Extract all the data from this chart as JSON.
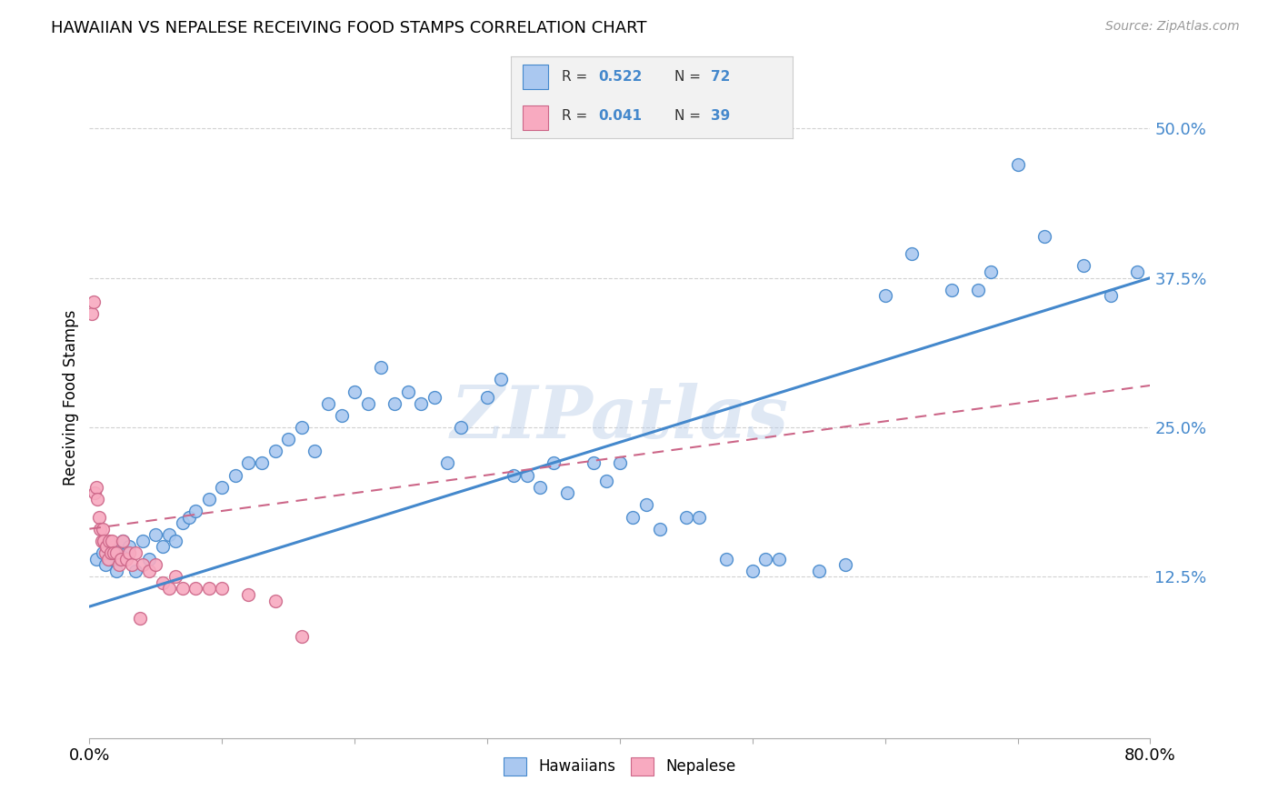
{
  "title": "HAWAIIAN VS NEPALESE RECEIVING FOOD STAMPS CORRELATION CHART",
  "source": "Source: ZipAtlas.com",
  "ylabel": "Receiving Food Stamps",
  "xlim": [
    0.0,
    0.8
  ],
  "ylim": [
    -0.01,
    0.56
  ],
  "yticks": [
    0.125,
    0.25,
    0.375,
    0.5
  ],
  "ytick_labels": [
    "12.5%",
    "25.0%",
    "37.5%",
    "50.0%"
  ],
  "xticks": [
    0.0,
    0.1,
    0.2,
    0.3,
    0.4,
    0.5,
    0.6,
    0.7,
    0.8
  ],
  "xtick_labels": [
    "0.0%",
    "",
    "",
    "",
    "",
    "",
    "",
    "",
    "80.0%"
  ],
  "hawaiian_color": "#aac8f0",
  "nepalese_color": "#f8aac0",
  "line_hawaiian_color": "#4488cc",
  "line_nepalese_color": "#cc6688",
  "watermark": "ZIPatlas",
  "haw_line_x0": 0.0,
  "haw_line_y0": 0.1,
  "haw_line_x1": 0.8,
  "haw_line_y1": 0.375,
  "nep_line_x0": 0.0,
  "nep_line_y0": 0.165,
  "nep_line_x1": 0.8,
  "nep_line_y1": 0.285,
  "hawaiian_x": [
    0.005,
    0.01,
    0.012,
    0.015,
    0.018,
    0.02,
    0.022,
    0.025,
    0.028,
    0.03,
    0.035,
    0.04,
    0.045,
    0.05,
    0.055,
    0.06,
    0.065,
    0.07,
    0.075,
    0.08,
    0.09,
    0.1,
    0.11,
    0.12,
    0.13,
    0.14,
    0.15,
    0.16,
    0.17,
    0.18,
    0.19,
    0.2,
    0.21,
    0.22,
    0.23,
    0.24,
    0.25,
    0.26,
    0.27,
    0.28,
    0.3,
    0.31,
    0.32,
    0.33,
    0.34,
    0.35,
    0.36,
    0.38,
    0.39,
    0.4,
    0.41,
    0.42,
    0.43,
    0.45,
    0.46,
    0.48,
    0.5,
    0.51,
    0.52,
    0.55,
    0.57,
    0.6,
    0.62,
    0.65,
    0.67,
    0.68,
    0.7,
    0.72,
    0.75,
    0.77,
    0.79
  ],
  "hawaiian_y": [
    0.14,
    0.145,
    0.135,
    0.14,
    0.15,
    0.13,
    0.14,
    0.155,
    0.145,
    0.15,
    0.13,
    0.155,
    0.14,
    0.16,
    0.15,
    0.16,
    0.155,
    0.17,
    0.175,
    0.18,
    0.19,
    0.2,
    0.21,
    0.22,
    0.22,
    0.23,
    0.24,
    0.25,
    0.23,
    0.27,
    0.26,
    0.28,
    0.27,
    0.3,
    0.27,
    0.28,
    0.27,
    0.275,
    0.22,
    0.25,
    0.275,
    0.29,
    0.21,
    0.21,
    0.2,
    0.22,
    0.195,
    0.22,
    0.205,
    0.22,
    0.175,
    0.185,
    0.165,
    0.175,
    0.175,
    0.14,
    0.13,
    0.14,
    0.14,
    0.13,
    0.135,
    0.36,
    0.395,
    0.365,
    0.365,
    0.38,
    0.47,
    0.41,
    0.385,
    0.36,
    0.38
  ],
  "nepalese_x": [
    0.002,
    0.003,
    0.004,
    0.005,
    0.006,
    0.007,
    0.008,
    0.009,
    0.01,
    0.011,
    0.012,
    0.013,
    0.014,
    0.015,
    0.016,
    0.017,
    0.018,
    0.02,
    0.022,
    0.024,
    0.025,
    0.028,
    0.03,
    0.032,
    0.035,
    0.038,
    0.04,
    0.045,
    0.05,
    0.055,
    0.06,
    0.065,
    0.07,
    0.08,
    0.09,
    0.1,
    0.12,
    0.14,
    0.16
  ],
  "nepalese_y": [
    0.345,
    0.355,
    0.195,
    0.2,
    0.19,
    0.175,
    0.165,
    0.155,
    0.165,
    0.155,
    0.145,
    0.15,
    0.14,
    0.155,
    0.145,
    0.155,
    0.145,
    0.145,
    0.135,
    0.14,
    0.155,
    0.14,
    0.145,
    0.135,
    0.145,
    0.09,
    0.135,
    0.13,
    0.135,
    0.12,
    0.115,
    0.125,
    0.115,
    0.115,
    0.115,
    0.115,
    0.11,
    0.105,
    0.075
  ]
}
